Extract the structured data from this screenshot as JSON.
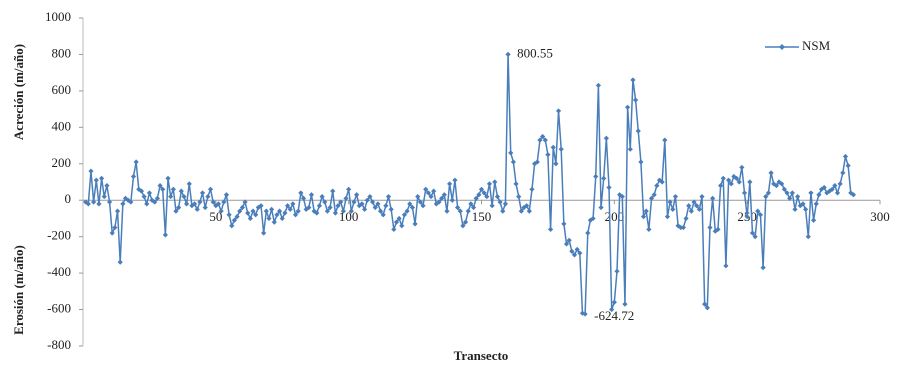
{
  "chart_data": {
    "type": "line",
    "ylabel_upper": "Acreción (m/año)",
    "ylabel_lower": "Erosión (m/año)",
    "xlabel": "Transecto",
    "xlim": [
      0,
      300
    ],
    "xticks": [
      50,
      100,
      150,
      200,
      250,
      300
    ],
    "ylim": [
      -800,
      1000
    ],
    "yticks": [
      -800,
      -600,
      -400,
      -200,
      0,
      200,
      400,
      600,
      800,
      1000
    ],
    "legend": "upper right",
    "x": [
      1,
      2,
      3,
      4,
      5,
      6,
      7,
      8,
      9,
      10,
      11,
      12,
      13,
      14,
      15,
      16,
      17,
      18,
      19,
      20,
      21,
      22,
      23,
      24,
      25,
      26,
      27,
      28,
      29,
      30,
      31,
      32,
      33,
      34,
      35,
      36,
      37,
      38,
      39,
      40,
      41,
      42,
      43,
      44,
      45,
      46,
      47,
      48,
      49,
      50,
      51,
      52,
      53,
      54,
      55,
      56,
      57,
      58,
      59,
      60,
      61,
      62,
      63,
      64,
      65,
      66,
      67,
      68,
      69,
      70,
      71,
      72,
      73,
      74,
      75,
      76,
      77,
      78,
      79,
      80,
      81,
      82,
      83,
      84,
      85,
      86,
      87,
      88,
      89,
      90,
      91,
      92,
      93,
      94,
      95,
      96,
      97,
      98,
      99,
      100,
      101,
      102,
      103,
      104,
      105,
      106,
      107,
      108,
      109,
      110,
      111,
      112,
      113,
      114,
      115,
      116,
      117,
      118,
      119,
      120,
      121,
      122,
      123,
      124,
      125,
      126,
      127,
      128,
      129,
      130,
      131,
      132,
      133,
      134,
      135,
      136,
      137,
      138,
      139,
      140,
      141,
      142,
      143,
      144,
      145,
      146,
      147,
      148,
      149,
      150,
      151,
      152,
      153,
      154,
      155,
      156,
      157,
      158,
      159,
      160,
      161,
      162,
      163,
      164,
      165,
      166,
      167,
      168,
      169,
      170,
      171,
      172,
      173,
      174,
      175,
      176,
      177,
      178,
      179,
      180,
      181,
      182,
      183,
      184,
      185,
      186,
      187,
      188,
      189,
      190,
      191,
      192,
      193,
      194,
      195,
      196,
      197,
      198,
      199,
      200,
      201,
      202,
      203,
      204,
      205,
      206,
      207,
      208,
      209,
      210,
      211,
      212,
      213,
      214,
      215,
      216,
      217,
      218,
      219,
      220,
      221,
      222,
      223,
      224,
      225,
      226,
      227,
      228,
      229,
      230,
      231,
      232,
      233,
      234,
      235,
      236,
      237,
      238,
      239,
      240,
      241,
      242,
      243,
      244,
      245,
      246,
      247,
      248,
      249,
      250,
      251,
      252,
      253,
      254,
      255,
      256,
      257,
      258,
      259,
      260,
      261,
      262,
      263,
      264,
      265,
      266,
      267,
      268,
      269,
      270,
      271,
      272,
      273,
      274,
      275,
      276,
      277,
      278,
      279,
      280,
      281,
      282,
      283,
      284,
      285,
      286,
      287,
      288,
      289,
      290
    ],
    "series": [
      {
        "name": "NSM",
        "color": "#4a7ebb",
        "values": [
          -10,
          -20,
          160,
          -10,
          110,
          -20,
          120,
          20,
          80,
          -10,
          -180,
          -150,
          -60,
          -340,
          -20,
          10,
          0,
          -10,
          130,
          210,
          60,
          50,
          20,
          -20,
          40,
          0,
          -10,
          10,
          80,
          60,
          -190,
          120,
          20,
          60,
          -60,
          -40,
          50,
          20,
          -20,
          90,
          -30,
          -20,
          -50,
          -10,
          40,
          -40,
          20,
          60,
          -10,
          -30,
          -20,
          -60,
          -10,
          30,
          -80,
          -140,
          -110,
          -90,
          -60,
          -40,
          -10,
          -70,
          -100,
          -60,
          -80,
          -40,
          -30,
          -180,
          -60,
          -100,
          -50,
          -120,
          -80,
          -60,
          -100,
          -70,
          -30,
          -50,
          -20,
          -80,
          -60,
          40,
          10,
          -50,
          -40,
          30,
          -60,
          -70,
          -30,
          20,
          -10,
          -60,
          -40,
          50,
          -70,
          -30,
          -10,
          -60,
          10,
          60,
          -60,
          -10,
          30,
          -30,
          -20,
          -50,
          0,
          20,
          -10,
          -40,
          -20,
          -60,
          -80,
          -30,
          20,
          -50,
          -160,
          -120,
          -100,
          -140,
          -80,
          -60,
          -20,
          -40,
          -130,
          20,
          -10,
          -30,
          60,
          40,
          20,
          50,
          -20,
          -10,
          10,
          30,
          -60,
          90,
          0,
          110,
          -40,
          -60,
          -140,
          -120,
          -60,
          -20,
          -40,
          10,
          30,
          60,
          40,
          20,
          90,
          -30,
          100,
          20,
          -10,
          -60,
          -20,
          800.55,
          260,
          210,
          90,
          20,
          -60,
          -40,
          -30,
          -60,
          60,
          200,
          210,
          330,
          350,
          330,
          250,
          -160,
          290,
          200,
          490,
          280,
          -130,
          -240,
          -220,
          -280,
          -300,
          -270,
          -290,
          -620,
          -624.72,
          -180,
          -110,
          -100,
          130,
          630,
          -40,
          120,
          340,
          70,
          -600,
          -560,
          -390,
          30,
          20,
          -570,
          510,
          280,
          660,
          550,
          380,
          210,
          -90,
          -60,
          -160,
          10,
          30,
          80,
          110,
          100,
          330,
          -90,
          -10,
          -50,
          20,
          -140,
          -150,
          -150,
          -100,
          -30,
          -60,
          -10,
          -30,
          -50,
          20,
          -570,
          -590,
          -150,
          10,
          -170,
          -160,
          80,
          120,
          -360,
          110,
          90,
          130,
          120,
          100,
          180,
          40,
          -90,
          100,
          -180,
          -200,
          -60,
          -80,
          -370,
          20,
          40,
          150,
          90,
          80,
          100,
          90,
          60,
          40,
          10,
          40,
          -50,
          20,
          -30,
          -20,
          -50,
          -200,
          40,
          -110,
          -20,
          30,
          60,
          70,
          40,
          50,
          60,
          80,
          40,
          90,
          150,
          240,
          190,
          40,
          30
        ]
      }
    ]
  }
}
